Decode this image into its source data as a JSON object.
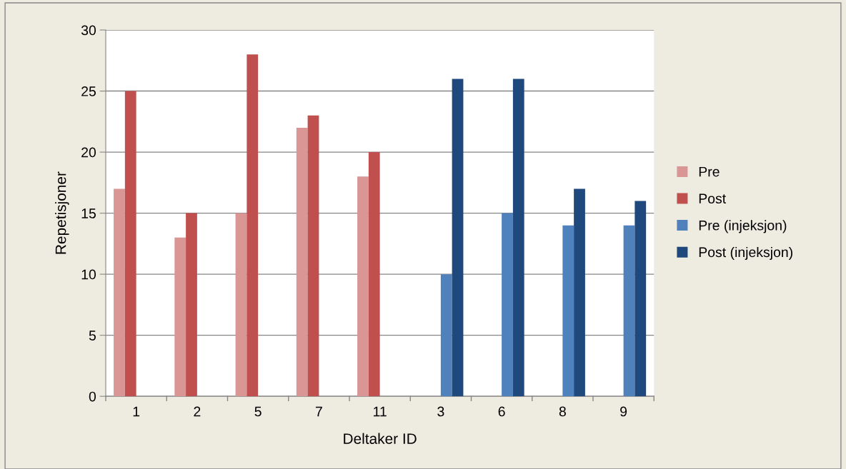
{
  "chart_data": {
    "type": "bar",
    "xlabel": "Deltaker ID",
    "ylabel": "Repetisjoner",
    "categories": [
      "1",
      "2",
      "5",
      "7",
      "11",
      "3",
      "6",
      "8",
      "9"
    ],
    "series": [
      {
        "name": "Pre",
        "color": "#d99694",
        "values": [
          17,
          13,
          15,
          22,
          18,
          null,
          null,
          null,
          null
        ]
      },
      {
        "name": "Post",
        "color": "#c0504d",
        "values": [
          25,
          15,
          28,
          23,
          20,
          null,
          null,
          null,
          null
        ]
      },
      {
        "name": "Pre (injeksjon)",
        "color": "#4f81bd",
        "values": [
          null,
          null,
          null,
          null,
          null,
          10,
          15,
          14,
          14
        ]
      },
      {
        "name": "Post (injeksjon)",
        "color": "#1f497d",
        "values": [
          null,
          null,
          null,
          null,
          null,
          26,
          26,
          17,
          16
        ]
      }
    ],
    "ylim": [
      0,
      30
    ],
    "yticks": [
      0,
      5,
      10,
      15,
      20,
      25,
      30
    ],
    "grid": "y",
    "legend": "right"
  }
}
